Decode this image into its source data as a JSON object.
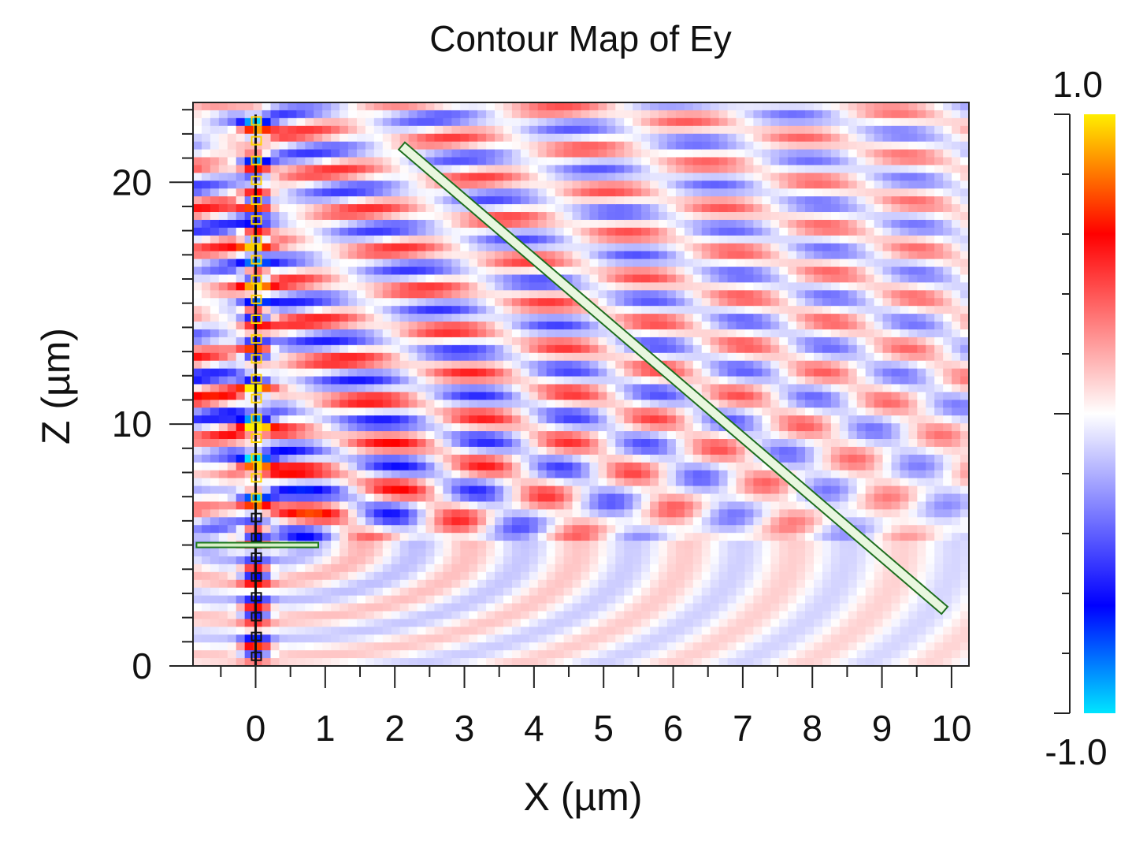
{
  "chart_data": {
    "type": "heatmap",
    "title": "Contour Map of Ey",
    "xlabel": "X (µm)",
    "ylabel": "Z (µm)",
    "xlim": [
      -0.9,
      10.25
    ],
    "ylim": [
      0,
      23.3
    ],
    "x_ticks": [
      0,
      1,
      2,
      3,
      4,
      5,
      6,
      7,
      8,
      9,
      10
    ],
    "y_ticks": [
      0,
      10,
      20
    ],
    "colorbar": {
      "min": -1.0,
      "max": 1.0,
      "max_label": "1.0",
      "min_label": "-1.0",
      "colors": [
        "#00e5ff",
        "#0000ff",
        "#ffffff",
        "#ff0000",
        "#ffee00"
      ]
    },
    "structures": {
      "vertical_waveguide": {
        "x": 0,
        "z": [
          0,
          22.8
        ]
      },
      "horizontal_bar": {
        "x": [
          -0.85,
          0.9
        ],
        "z": 5.0
      },
      "tilted_grating": {
        "start": [
          2.1,
          21.5
        ],
        "end": [
          9.9,
          2.3
        ]
      }
    }
  }
}
